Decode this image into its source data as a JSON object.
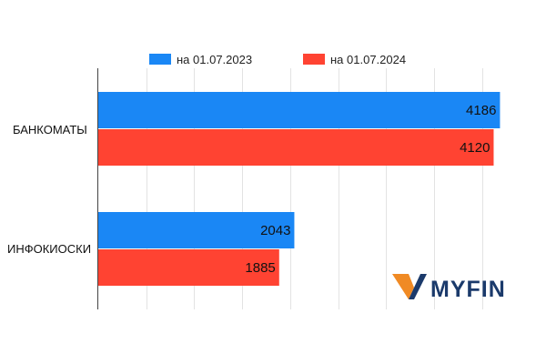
{
  "chart_data": {
    "type": "bar",
    "orientation": "horizontal",
    "categories": [
      "БАНКОМАТЫ",
      "ИНФОКИОСКИ"
    ],
    "series": [
      {
        "name": "на 01.07.2023",
        "color": "#1a87f5",
        "values": [
          4186,
          2043
        ]
      },
      {
        "name": "на 01.07.2024",
        "color": "#ff4332",
        "values": [
          4120,
          1885
        ]
      }
    ],
    "xlim": [
      0,
      4400
    ],
    "grid": true,
    "legend_position": "top"
  },
  "logo": {
    "text": "MYFIN",
    "mark_colors": [
      "#f08a24",
      "#1b3a6b"
    ]
  }
}
